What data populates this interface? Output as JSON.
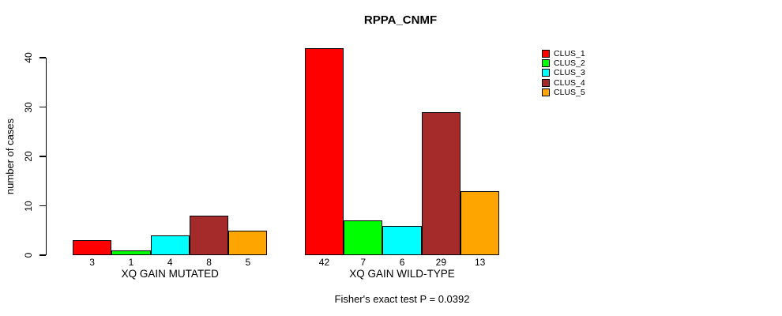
{
  "chart_data": {
    "type": "bar",
    "title": "RPPA_CNMF",
    "xlabel": "",
    "ylabel": "number of cases",
    "ylim": [
      0,
      42
    ],
    "yticks": [
      0,
      10,
      20,
      30,
      40
    ],
    "grid": false,
    "legend_position": "right",
    "categories": [
      "XQ GAIN MUTATED",
      "XQ GAIN WILD-TYPE"
    ],
    "series": [
      {
        "name": "CLUS_1",
        "color": "#FF0000",
        "values": [
          3,
          42
        ]
      },
      {
        "name": "CLUS_2",
        "color": "#00FF00",
        "values": [
          1,
          7
        ]
      },
      {
        "name": "CLUS_3",
        "color": "#00FFFF",
        "values": [
          4,
          6
        ]
      },
      {
        "name": "CLUS_4",
        "color": "#A52A2A",
        "values": [
          8,
          29
        ]
      },
      {
        "name": "CLUS_5",
        "color": "#FFA500",
        "values": [
          5,
          13
        ]
      }
    ],
    "bar_value_labels": [
      [
        3,
        1,
        4,
        8,
        5
      ],
      [
        42,
        7,
        6,
        29,
        13
      ]
    ],
    "annotation": "Fisher's exact test P = 0.0392",
    "axis_color": "#000000",
    "bar_border_color": "#000000",
    "background_color": "#FFFFFF"
  }
}
